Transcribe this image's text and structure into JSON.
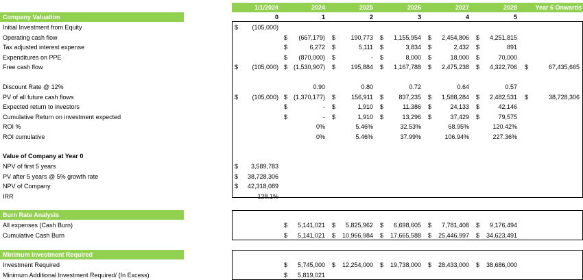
{
  "header": {
    "dates": [
      "1/1/2024",
      "2024",
      "2025",
      "2026",
      "2027",
      "2028",
      "Year 6 Onwards"
    ],
    "periods": [
      "0",
      "1",
      "2",
      "3",
      "4",
      "5"
    ]
  },
  "sections": {
    "valuation": "Company Valuation",
    "value_at_zero": "Value of Company at Year 0",
    "burn": "Burn Rate Analysis",
    "min_invest": "Minimum Investment Required"
  },
  "rows": [
    {
      "label": "Initial Investment from Equity",
      "cells": [
        [
          "$",
          "(105,000)"
        ],
        null,
        null,
        null,
        null,
        null,
        null
      ]
    },
    {
      "label": "Operating cash flow",
      "cells": [
        null,
        [
          "$",
          "(667,179)"
        ],
        [
          "$",
          "190,773"
        ],
        [
          "$",
          "1,155,954"
        ],
        [
          "$",
          "2,454,806"
        ],
        [
          "$",
          "4,251,815"
        ],
        null
      ]
    },
    {
      "label": "Tax adjusted interest expense",
      "cells": [
        null,
        [
          "$",
          "6,272"
        ],
        [
          "$",
          "5,111"
        ],
        [
          "$",
          "3,834"
        ],
        [
          "$",
          "2,432"
        ],
        [
          "$",
          "891"
        ],
        null
      ]
    },
    {
      "label": "Expenditures on PPE",
      "cells": [
        null,
        [
          "$",
          "(870,000)"
        ],
        [
          "$",
          "-"
        ],
        [
          "$",
          "8,000"
        ],
        [
          "$",
          "18,000"
        ],
        [
          "$",
          "70,000"
        ],
        null
      ]
    },
    {
      "label": "Free cash flow",
      "cells": [
        [
          "$",
          "(105,000)"
        ],
        [
          "$",
          "(1,530,907)"
        ],
        [
          "$",
          "195,884"
        ],
        [
          "$",
          "1,167,788"
        ],
        [
          "$",
          "2,475,238"
        ],
        [
          "$",
          "4,322,706"
        ],
        [
          "$",
          "67,435,665"
        ]
      ]
    },
    {
      "label": "",
      "cells": [
        null,
        null,
        null,
        null,
        null,
        null,
        null
      ]
    },
    {
      "label": "Discount Rate @ 12%",
      "cells": [
        null,
        [
          "",
          "0.90"
        ],
        [
          "",
          "0.80"
        ],
        [
          "",
          "0.72"
        ],
        [
          "",
          "0.64"
        ],
        [
          "",
          "0.57"
        ],
        null
      ]
    },
    {
      "label": "PV of all future cash flows",
      "cells": [
        [
          "$",
          "(105,000)"
        ],
        [
          "$",
          "(1,370,177)"
        ],
        [
          "$",
          "156,911"
        ],
        [
          "$",
          "837,235"
        ],
        [
          "$",
          "1,588,284"
        ],
        [
          "$",
          "2,482,531"
        ],
        [
          "$",
          "38,728,306"
        ]
      ]
    },
    {
      "label": "Expected return to investors",
      "cells": [
        null,
        [
          "$",
          "-"
        ],
        [
          "$",
          "1,910"
        ],
        [
          "$",
          "11,386"
        ],
        [
          "$",
          "24,133"
        ],
        [
          "$",
          "42,146"
        ],
        null
      ]
    },
    {
      "label": "Cumulative Return on investment expected",
      "cells": [
        null,
        [
          "$",
          "-"
        ],
        [
          "$",
          "1,910"
        ],
        [
          "$",
          "13,296"
        ],
        [
          "$",
          "37,429"
        ],
        [
          "$",
          "79,575"
        ],
        null
      ]
    },
    {
      "label": "ROI %",
      "cells": [
        null,
        [
          "",
          "0%"
        ],
        [
          "",
          "5.46%"
        ],
        [
          "",
          "32.53%"
        ],
        [
          "",
          "68.95%"
        ],
        [
          "",
          "120.42%"
        ],
        null
      ]
    },
    {
      "label": "ROI cumulative",
      "cells": [
        null,
        [
          "",
          "0%"
        ],
        [
          "",
          "5.46%"
        ],
        [
          "",
          "37.99%"
        ],
        [
          "",
          "106.94%"
        ],
        [
          "",
          "227.36%"
        ],
        null
      ]
    }
  ],
  "value_rows": [
    {
      "label": "NPV of first 5 years",
      "dollar": "$",
      "value": "3,589,783"
    },
    {
      "label": "PV after 5 years @ 5% growth rate",
      "dollar": "$",
      "value": "38,728,306"
    },
    {
      "label": "NPV of Company",
      "dollar": "$",
      "value": "42,318,089"
    },
    {
      "label": "IRR",
      "dollar": "",
      "value": "128.1%"
    }
  ],
  "burn_rows": [
    {
      "label": "All expenses (Cash Burn)",
      "cells": [
        [
          "$",
          "5,141,021"
        ],
        [
          "$",
          "5,825,962"
        ],
        [
          "$",
          "6,698,605"
        ],
        [
          "$",
          "7,781,408"
        ],
        [
          "$",
          "9,176,494"
        ]
      ]
    },
    {
      "label": "Cumulative Cash Burn",
      "cells": [
        [
          "$",
          "5,141,021"
        ],
        [
          "$",
          "10,966,984"
        ],
        [
          "$",
          "17,665,588"
        ],
        [
          "$",
          "25,446,997"
        ],
        [
          "$",
          "34,623,491"
        ]
      ]
    }
  ],
  "invest_rows": [
    {
      "label": "Investment Required",
      "cells": [
        [
          "$",
          "5,745,000"
        ],
        [
          "$",
          "12,254,000"
        ],
        [
          "$",
          "19,738,000"
        ],
        [
          "$",
          "28,433,000"
        ],
        [
          "$",
          "38,686,000"
        ]
      ]
    },
    {
      "label": "Minimum Additional Investment Required/ (In Excess)",
      "cells": [
        [
          "$",
          "5,819,021"
        ],
        null,
        null,
        null,
        null
      ]
    }
  ]
}
